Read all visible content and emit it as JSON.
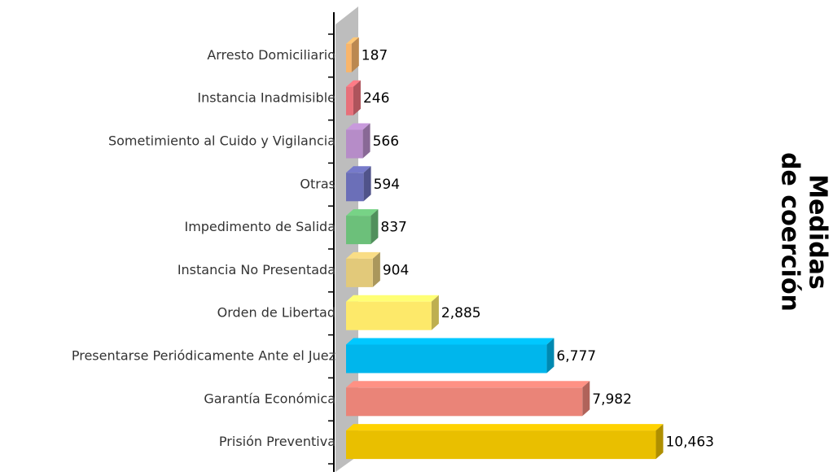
{
  "chart_data": {
    "type": "bar",
    "orientation": "horizontal",
    "title": [
      "Medidas",
      "de coerción"
    ],
    "categories": [
      "Arresto Domiciliario",
      "Instancia Inadmisible",
      "Sometimiento al Cuido y Vigilancia",
      "Otras",
      "Impedimento de Salida",
      "Instancia No Presentada",
      "Orden de Libertad",
      "Presentarse Periódicamente Ante el Juez",
      "Garantía Económica",
      "Prisión Preventiva"
    ],
    "values": [
      187,
      246,
      566,
      594,
      837,
      904,
      2885,
      6777,
      7982,
      10463
    ],
    "value_labels": [
      "187",
      "246",
      "566",
      "594",
      "837",
      "904",
      "2,885",
      "6,777",
      "7,982",
      "10,463"
    ],
    "colors": [
      "#f9b56a",
      "#e8707a",
      "#b68cc8",
      "#6b6fb8",
      "#6cc07a",
      "#e2c97a",
      "#fde96a",
      "#00b6ec",
      "#ea8478",
      "#e9bf00"
    ],
    "xlim": [
      0,
      11000
    ]
  }
}
